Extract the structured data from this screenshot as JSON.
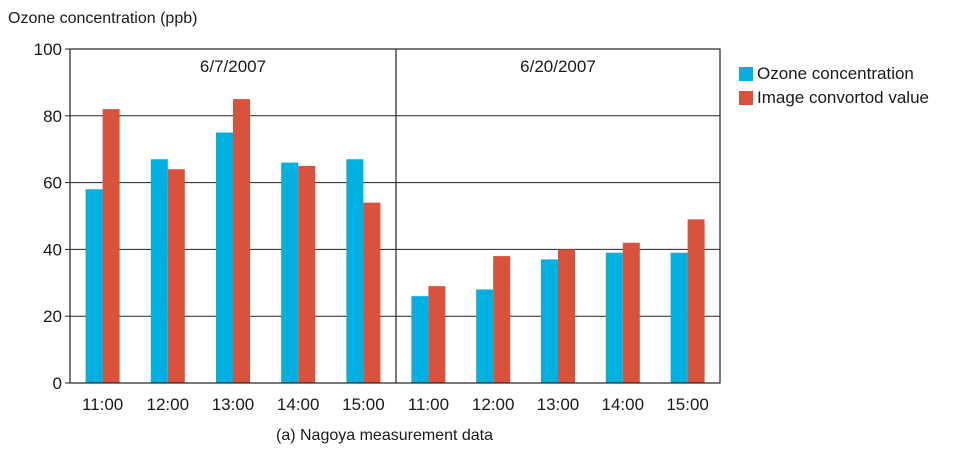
{
  "chart_data": {
    "type": "bar",
    "ylabel": "Ozone concentration (ppb)",
    "caption": "(a) Nagoya measurement data",
    "ylim": [
      0,
      100
    ],
    "yticks": [
      0,
      20,
      40,
      60,
      80,
      100
    ],
    "grid": true,
    "legend_position": "right",
    "groups": [
      {
        "title": "6/7/2007",
        "categories": [
          "11:00",
          "12:00",
          "13:00",
          "14:00",
          "15:00"
        ],
        "series_values": [
          [
            58,
            67,
            75,
            66,
            67
          ],
          [
            82,
            64,
            85,
            65,
            54
          ]
        ]
      },
      {
        "title": "6/20/2007",
        "categories": [
          "11:00",
          "12:00",
          "13:00",
          "14:00",
          "15:00"
        ],
        "series_values": [
          [
            26,
            28,
            37,
            39,
            39
          ],
          [
            29,
            38,
            40,
            42,
            49
          ]
        ]
      }
    ],
    "series": [
      {
        "name": "Ozone concentration",
        "color": "#00b0e0"
      },
      {
        "name": "Image convortod value",
        "color": "#d9533c"
      }
    ]
  }
}
